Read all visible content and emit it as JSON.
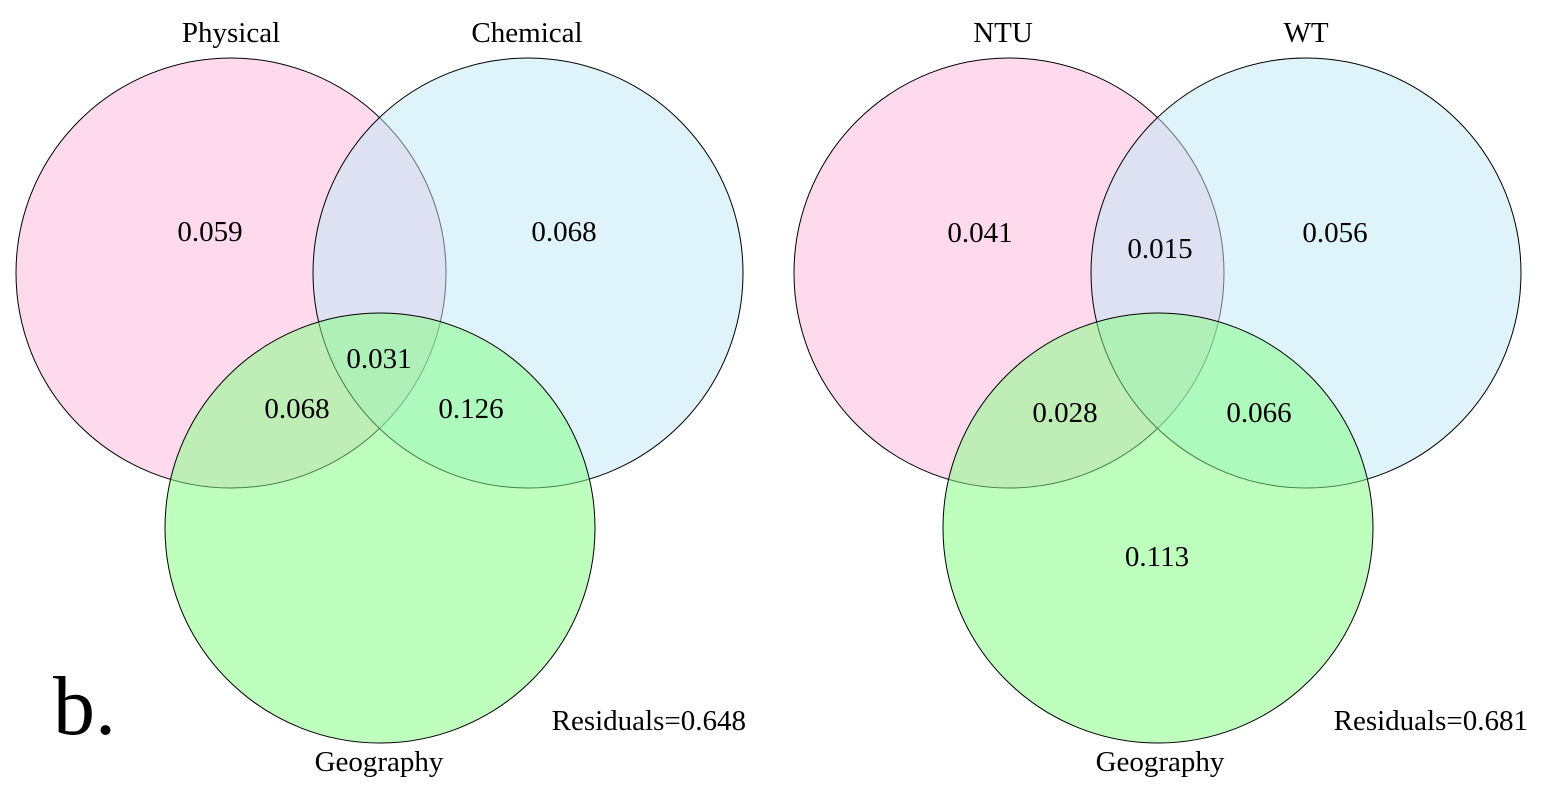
{
  "panel_letter": "b.",
  "colors": {
    "set_a": "#ffb6dc",
    "set_b": "#bde8f6",
    "set_c": "#7dff7d"
  },
  "panels": [
    {
      "sets": {
        "a": "Physical",
        "b": "Chemical",
        "c": "Geography"
      },
      "regions": {
        "a_only": "0.059",
        "b_only": "0.068",
        "c_only": "",
        "ab": "",
        "ac": "0.068",
        "bc": "0.126",
        "abc": "0.031"
      },
      "residuals": "Residuals=0.648"
    },
    {
      "sets": {
        "a": "NTU",
        "b": "WT",
        "c": "Geography"
      },
      "regions": {
        "a_only": "0.041",
        "b_only": "0.056",
        "c_only": "0.113",
        "ab": "0.015",
        "ac": "0.028",
        "bc": "0.066",
        "abc": ""
      },
      "residuals": "Residuals=0.681"
    }
  ]
}
